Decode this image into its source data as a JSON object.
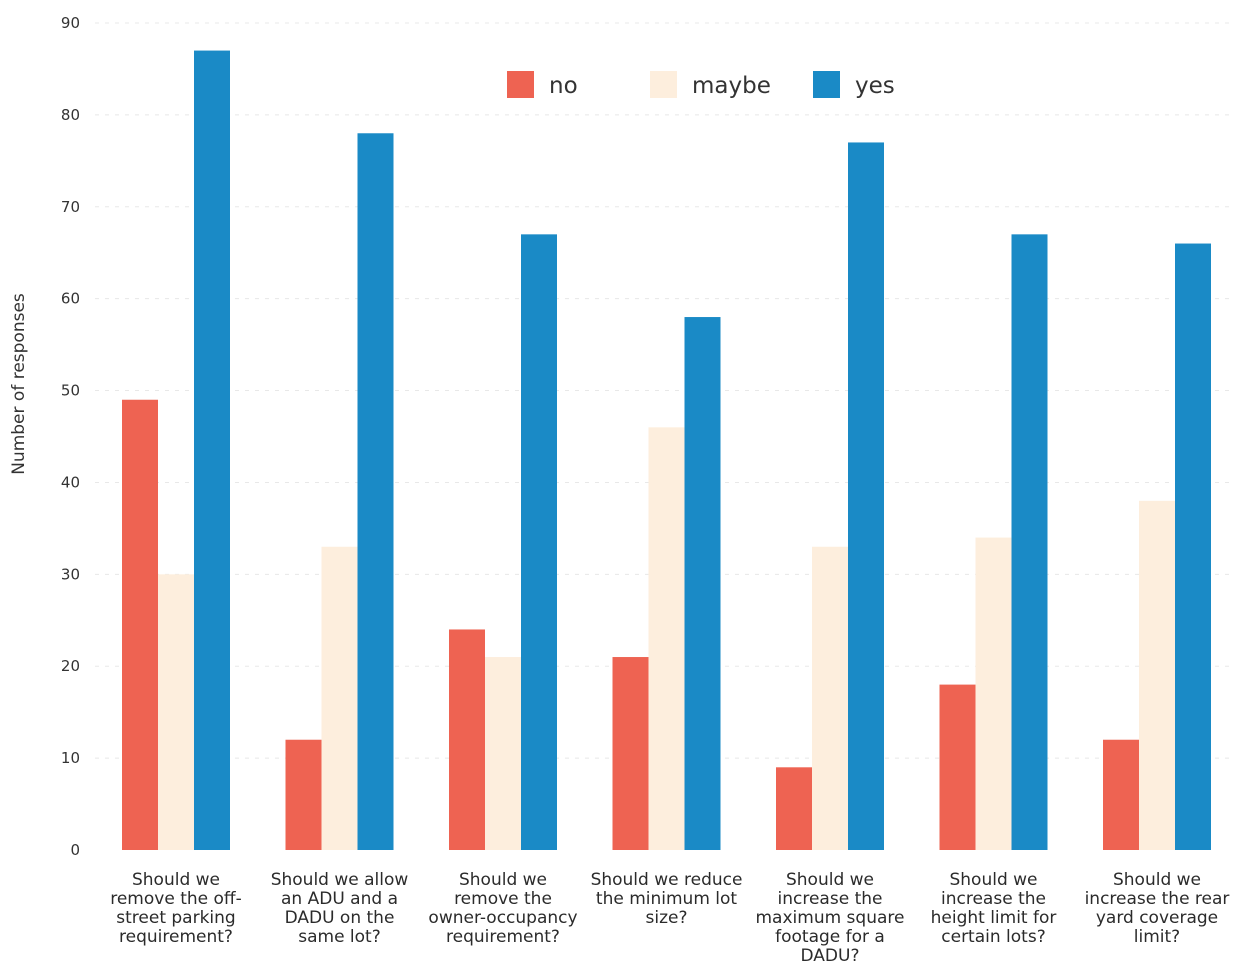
{
  "chart_data": {
    "type": "bar",
    "title": "",
    "xlabel": "",
    "ylabel": "Number of responses",
    "ylim": [
      0,
      90
    ],
    "yticks": [
      0,
      10,
      20,
      30,
      40,
      50,
      60,
      70,
      80,
      90
    ],
    "grid": true,
    "legend_position": "top-center",
    "categories": [
      [
        "Should we",
        "remove the off-",
        "street parking",
        "requirement?"
      ],
      [
        "Should we allow",
        "an ADU and a",
        "DADU on the",
        "same lot?"
      ],
      [
        "Should we",
        "remove the",
        "owner-occupancy",
        "requirement?"
      ],
      [
        "Should we reduce",
        "the minimum lot",
        "size?"
      ],
      [
        "Should we",
        "increase the",
        "maximum square",
        "footage for a",
        "DADU?"
      ],
      [
        "Should we",
        "increase the",
        "height limit for",
        "certain lots?"
      ],
      [
        "Should we",
        "increase the rear",
        "yard coverage",
        "limit?"
      ]
    ],
    "series": [
      {
        "name": "no",
        "color": "#ee6352",
        "values": [
          49,
          12,
          24,
          21,
          9,
          18,
          12
        ]
      },
      {
        "name": "maybe",
        "color": "#fdeedd",
        "values": [
          30,
          33,
          21,
          46,
          33,
          34,
          38
        ]
      },
      {
        "name": "yes",
        "color": "#1a8ac6",
        "values": [
          87,
          78,
          67,
          58,
          77,
          67,
          66
        ]
      }
    ]
  }
}
